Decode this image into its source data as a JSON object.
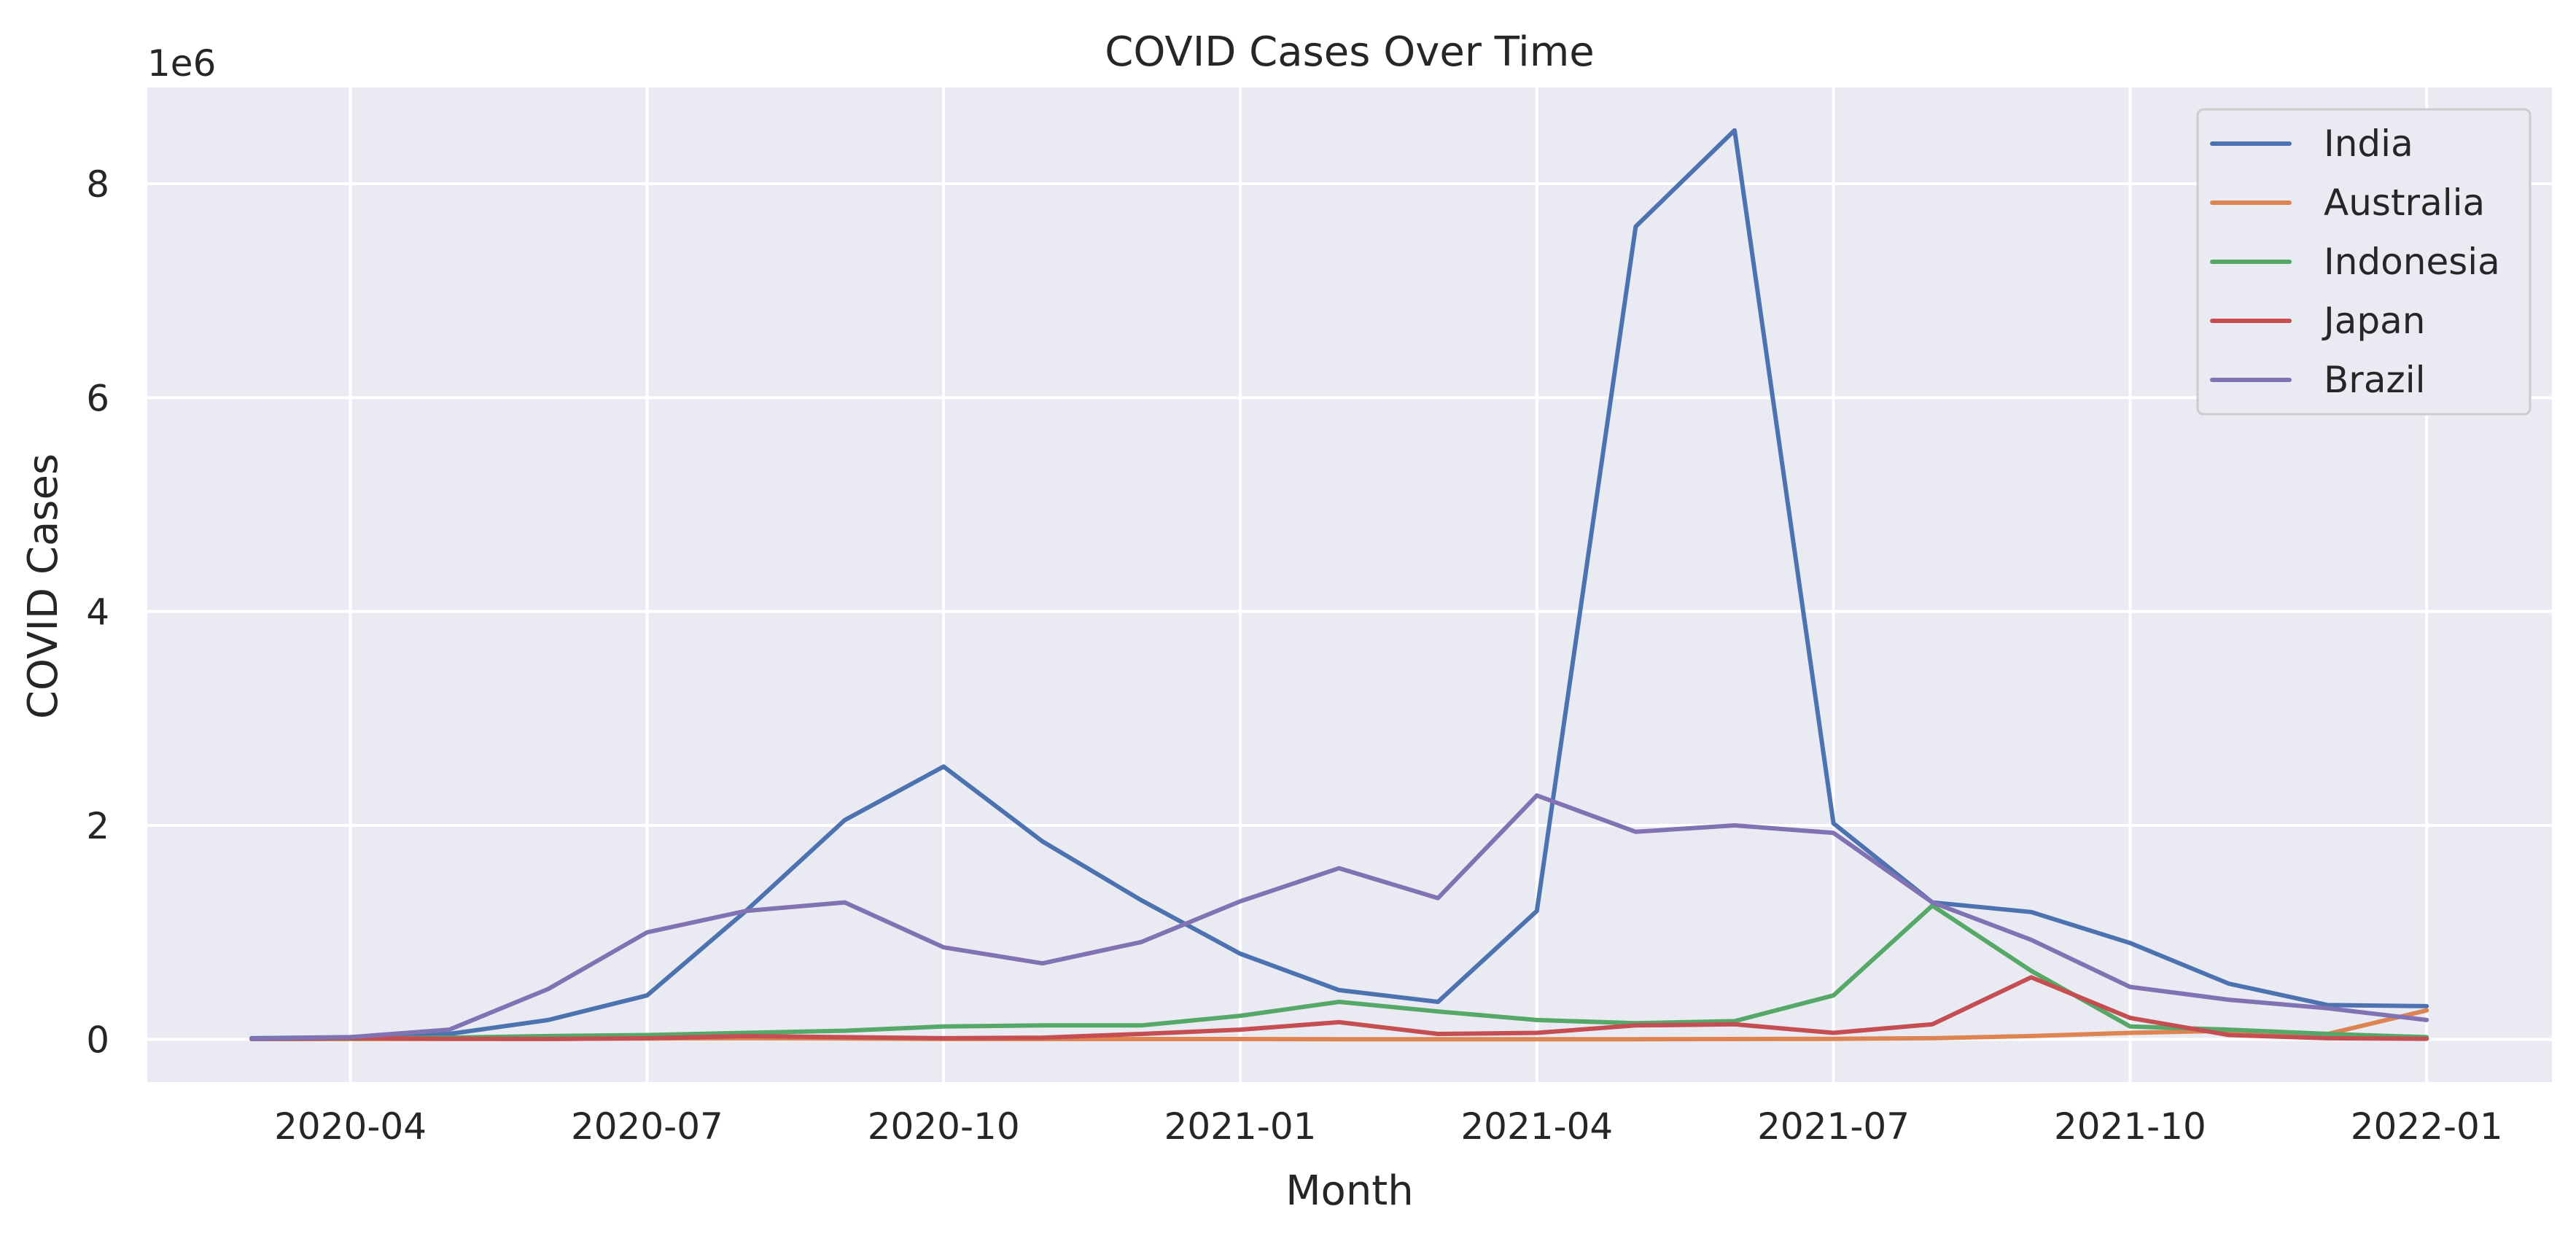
{
  "chart_data": {
    "type": "line",
    "title": "COVID Cases Over Time",
    "xlabel": "Month",
    "ylabel": "COVID Cases",
    "y_offset_label": "1e6",
    "grid": true,
    "legend_position": "top-right",
    "ylim": [
      -0.4,
      8.9
    ],
    "y_ticks": [
      0,
      2,
      4,
      6,
      8
    ],
    "x_dates": [
      "2020-03",
      "2020-04",
      "2020-05",
      "2020-06",
      "2020-07",
      "2020-08",
      "2020-09",
      "2020-10",
      "2020-11",
      "2020-12",
      "2021-01",
      "2021-02",
      "2021-03",
      "2021-04",
      "2021-05",
      "2021-06",
      "2021-07",
      "2021-08",
      "2021-09",
      "2021-10",
      "2021-11",
      "2021-12",
      "2022-01"
    ],
    "x_ticks": [
      {
        "date": "2020-04",
        "label": "2020-04"
      },
      {
        "date": "2020-07",
        "label": "2020-07"
      },
      {
        "date": "2020-10",
        "label": "2020-10"
      },
      {
        "date": "2021-01",
        "label": "2021-01"
      },
      {
        "date": "2021-04",
        "label": "2021-04"
      },
      {
        "date": "2021-07",
        "label": "2021-07"
      },
      {
        "date": "2021-10",
        "label": "2021-10"
      },
      {
        "date": "2022-01",
        "label": "2022-01"
      }
    ],
    "series": [
      {
        "name": "India",
        "color": "#4c72b0",
        "values": [
          0.01,
          0.02,
          0.05,
          0.18,
          0.41,
          1.2,
          2.05,
          2.55,
          1.85,
          1.3,
          0.8,
          0.46,
          0.35,
          1.2,
          7.6,
          8.5,
          2.02,
          1.28,
          1.19,
          0.9,
          0.52,
          0.32,
          0.31
        ]
      },
      {
        "name": "Australia",
        "color": "#dd8452",
        "values": [
          0.002,
          0.003,
          0.003,
          0.004,
          0.008,
          0.01,
          0.008,
          0.003,
          0.002,
          0.002,
          0.002,
          0.001,
          0.001,
          0.001,
          0.001,
          0.002,
          0.004,
          0.01,
          0.03,
          0.06,
          0.08,
          0.05,
          0.27
        ]
      },
      {
        "name": "Indonesia",
        "color": "#55a868",
        "values": [
          0.002,
          0.008,
          0.015,
          0.03,
          0.04,
          0.06,
          0.08,
          0.12,
          0.13,
          0.13,
          0.22,
          0.35,
          0.26,
          0.18,
          0.15,
          0.17,
          0.41,
          1.25,
          0.64,
          0.12,
          0.09,
          0.05,
          0.02
        ]
      },
      {
        "name": "Japan",
        "color": "#c44e52",
        "values": [
          0.002,
          0.01,
          0.005,
          0.003,
          0.01,
          0.03,
          0.02,
          0.01,
          0.015,
          0.05,
          0.09,
          0.16,
          0.05,
          0.06,
          0.13,
          0.14,
          0.06,
          0.14,
          0.58,
          0.2,
          0.04,
          0.01,
          0.005
        ]
      },
      {
        "name": "Brazil",
        "color": "#8172b3",
        "values": [
          0.004,
          0.02,
          0.09,
          0.47,
          1.0,
          1.2,
          1.28,
          0.86,
          0.71,
          0.91,
          1.29,
          1.6,
          1.32,
          2.28,
          1.94,
          2.0,
          1.93,
          1.28,
          0.93,
          0.49,
          0.37,
          0.29,
          0.18
        ]
      }
    ]
  }
}
